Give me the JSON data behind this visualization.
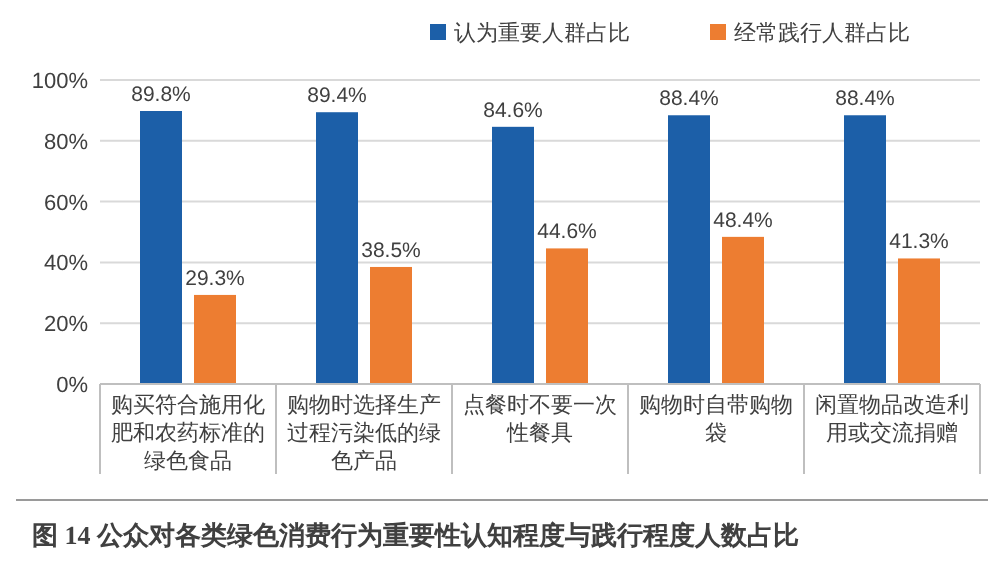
{
  "chart_data": {
    "type": "bar",
    "title": "图 14 公众对各类绿色消费行为重要性认知程度与践行程度人数占比",
    "categories": [
      "购买符合施用化肥和农药标准的绿色食品",
      "购物时选择生产过程污染低的绿色产品",
      "点餐时不要一次性餐具",
      "购物时自带购物袋",
      "闲置物品改造利用或交流捐赠"
    ],
    "series": [
      {
        "name": "认为重要人群占比",
        "color": "#1c5fa8",
        "values": [
          89.8,
          89.4,
          84.6,
          88.4,
          88.4
        ],
        "value_labels": [
          "89.8%",
          "89.4%",
          "84.6%",
          "88.4%",
          "88.4%"
        ]
      },
      {
        "name": "经常践行人群占比",
        "color": "#ed7d31",
        "values": [
          29.3,
          38.5,
          44.6,
          48.4,
          41.3
        ],
        "value_labels": [
          "29.3%",
          "38.5%",
          "44.6%",
          "48.4%",
          "41.3%"
        ]
      }
    ],
    "ylim": [
      0,
      100
    ],
    "yticks": [
      {
        "value": 0,
        "label": "0%"
      },
      {
        "value": 20,
        "label": "20%"
      },
      {
        "value": 40,
        "label": "40%"
      },
      {
        "value": 60,
        "label": "60%"
      },
      {
        "value": 80,
        "label": "80%"
      },
      {
        "value": 100,
        "label": "100%"
      }
    ],
    "grid": "y",
    "legend": "top right"
  }
}
